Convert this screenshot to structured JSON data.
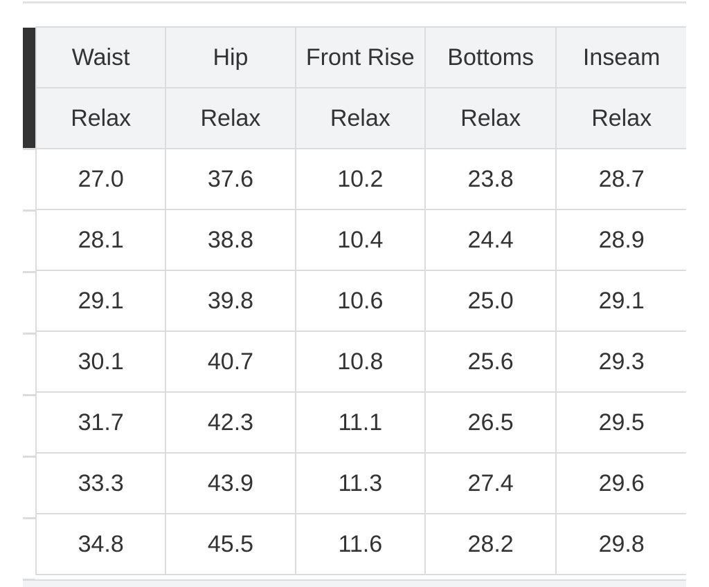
{
  "table": {
    "headers": [
      "Waist",
      "Hip",
      "Front Rise",
      "Bottoms",
      "Inseam"
    ],
    "subheaders": [
      "Relax",
      "Relax",
      "Relax",
      "Relax",
      "Relax"
    ],
    "rows": [
      [
        "27.0",
        "37.6",
        "10.2",
        "23.8",
        "28.7"
      ],
      [
        "28.1",
        "38.8",
        "10.4",
        "24.4",
        "28.9"
      ],
      [
        "29.1",
        "39.8",
        "10.6",
        "25.0",
        "29.1"
      ],
      [
        "30.1",
        "40.7",
        "10.8",
        "25.6",
        "29.3"
      ],
      [
        "31.7",
        "42.3",
        "11.1",
        "26.5",
        "29.5"
      ],
      [
        "33.3",
        "43.9",
        "11.3",
        "27.4",
        "29.6"
      ],
      [
        "34.8",
        "45.5",
        "11.6",
        "28.2",
        "29.8"
      ]
    ]
  }
}
